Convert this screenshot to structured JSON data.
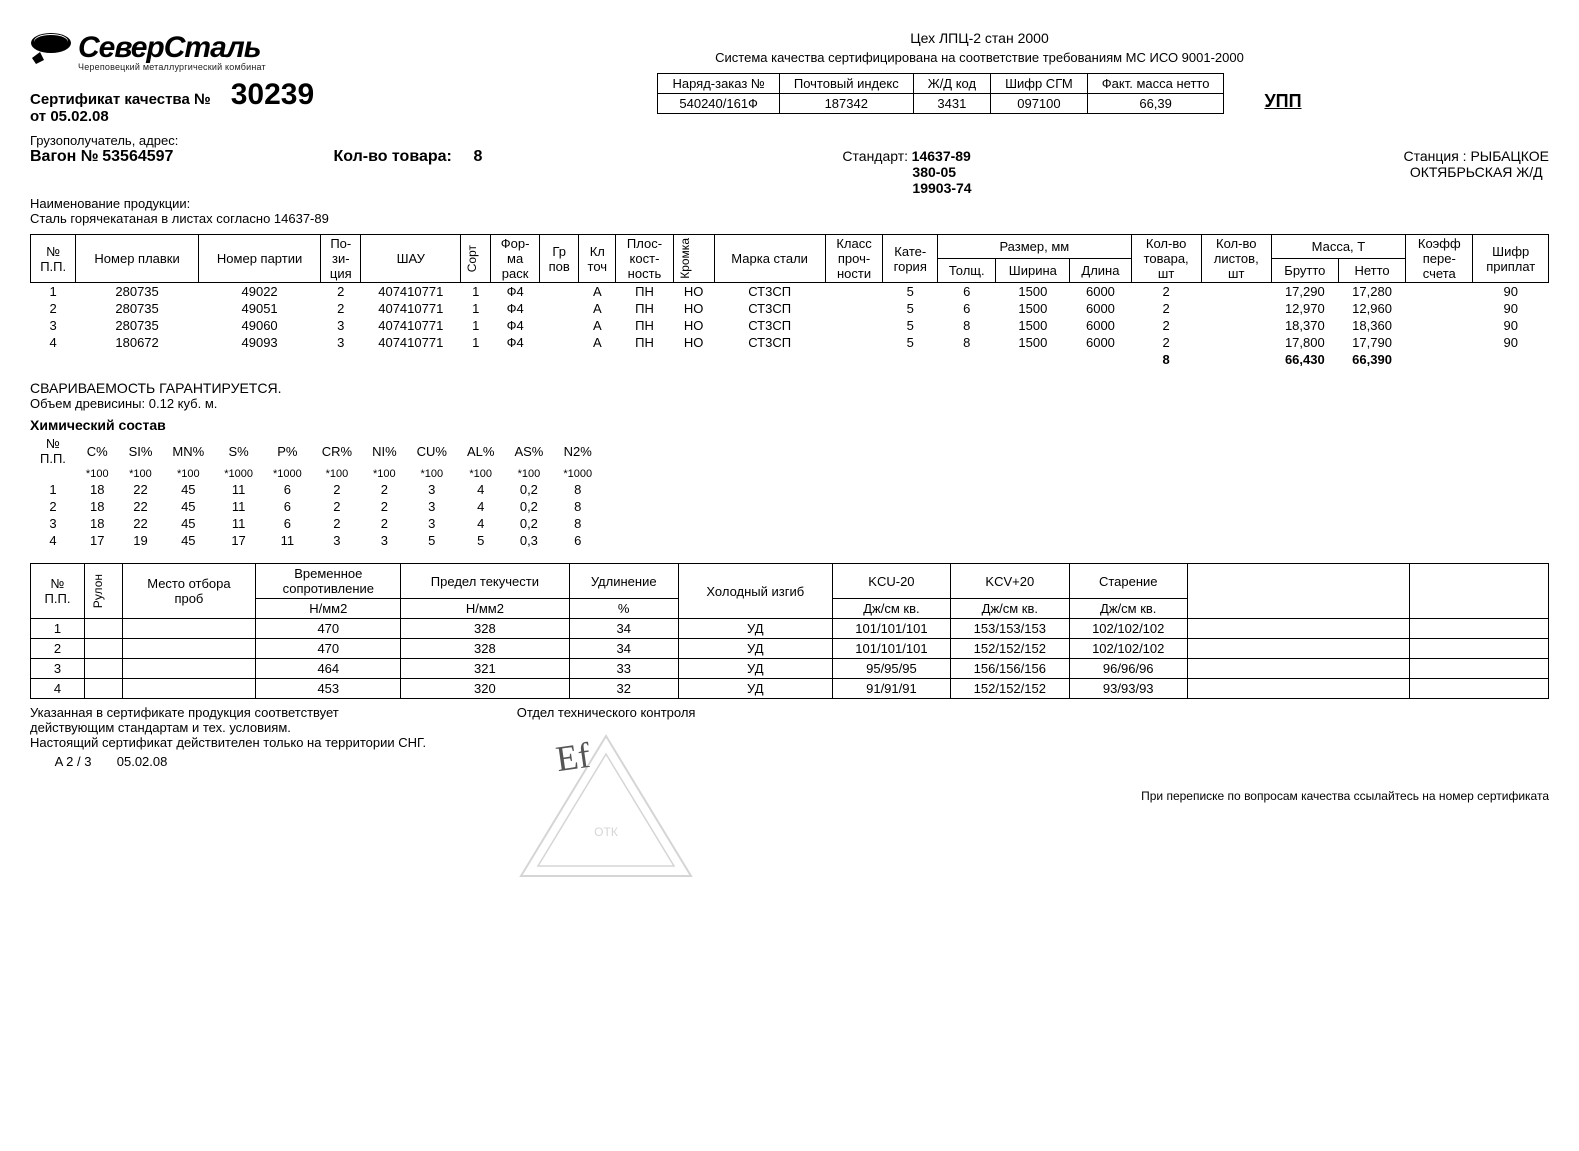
{
  "logo": {
    "company": "СеверСталь",
    "sub": "Череповецкий металлургический комбинат"
  },
  "cert": {
    "label": "Сертификат качества №",
    "number": "30239",
    "date_label": "от",
    "date": "05.02.08"
  },
  "mill": "Цех ЛПЦ-2 стан 2000",
  "iso": "Система качества сертифицирована на соответствие требованиям МС ИСО 9001-2000",
  "info_headers": [
    "Наряд-заказ №",
    "Почтовый индекс",
    "Ж/Д код",
    "Шифр СГМ",
    "Факт. масса нетто"
  ],
  "info_values": [
    "540240/161Ф",
    "187342",
    "3431",
    "097100",
    "66,39"
  ],
  "upp": "УПП",
  "consignee_label": "Грузополучатель, адрес:",
  "wagon": {
    "label": "Вагон №",
    "num": "53564597"
  },
  "qty": {
    "label": "Кол-во товара:",
    "val": "8"
  },
  "standard_label": "Стандарт:",
  "standards": [
    "14637-89",
    "380-05",
    "19903-74"
  ],
  "station_label": "Станция :",
  "station": "РЫБАЦКОЕ",
  "railway": "ОКТЯБРЬСКАЯ Ж/Д",
  "product_label": "Наименование продукции:",
  "product": "Сталь горячекатаная в листах согласно 14637-89",
  "main_headers": {
    "npp": "№\nП.П.",
    "plavka": "Номер плавки",
    "partia": "Номер партии",
    "poz": "По-\nзи-\nция",
    "shau": "ШАУ",
    "sort": "Сорт",
    "forma": "Фор-\nма\nраск",
    "grpov": "Гр\nпов",
    "kltoch": "Кл\nточ",
    "plosk": "Плос-\nкост-\nность",
    "kromka": "Кромка",
    "marka": "Марка стали",
    "klass": "Класс\nпроч-\nности",
    "kateg": "Кате-\nгория",
    "razmer": "Размер, мм",
    "tolsh": "Толщ.",
    "shir": "Ширина",
    "dlina": "Длина",
    "kolvo": "Кол-во\nтовара,\nшт",
    "listov": "Кол-во\nлистов,\nшт",
    "massa": "Масса, Т",
    "brutto": "Брутто",
    "netto": "Нетто",
    "koef": "Коэфф\nпере-\nсчета",
    "shifr": "Шифр\nприплат"
  },
  "main_rows": [
    {
      "n": "1",
      "plavka": "280735",
      "partia": "49022",
      "poz": "2",
      "shau": "407410771",
      "sort": "1",
      "forma": "Ф4",
      "grpov": "",
      "kl": "А",
      "plosk": "ПН",
      "kromka": "НО",
      "marka": "СТ3СП",
      "klass": "",
      "kateg": "5",
      "t": "6",
      "w": "1500",
      "l": "6000",
      "qty": "2",
      "list": "",
      "br": "17,290",
      "net": "17,280",
      "koef": "",
      "shifr": "90"
    },
    {
      "n": "2",
      "plavka": "280735",
      "partia": "49051",
      "poz": "2",
      "shau": "407410771",
      "sort": "1",
      "forma": "Ф4",
      "grpov": "",
      "kl": "А",
      "plosk": "ПН",
      "kromka": "НО",
      "marka": "СТ3СП",
      "klass": "",
      "kateg": "5",
      "t": "6",
      "w": "1500",
      "l": "6000",
      "qty": "2",
      "list": "",
      "br": "12,970",
      "net": "12,960",
      "koef": "",
      "shifr": "90"
    },
    {
      "n": "3",
      "plavka": "280735",
      "partia": "49060",
      "poz": "3",
      "shau": "407410771",
      "sort": "1",
      "forma": "Ф4",
      "grpov": "",
      "kl": "А",
      "plosk": "ПН",
      "kromka": "НО",
      "marka": "СТ3СП",
      "klass": "",
      "kateg": "5",
      "t": "8",
      "w": "1500",
      "l": "6000",
      "qty": "2",
      "list": "",
      "br": "18,370",
      "net": "18,360",
      "koef": "",
      "shifr": "90"
    },
    {
      "n": "4",
      "plavka": "180672",
      "partia": "49093",
      "poz": "3",
      "shau": "407410771",
      "sort": "1",
      "forma": "Ф4",
      "grpov": "",
      "kl": "А",
      "plosk": "ПН",
      "kromka": "НО",
      "marka": "СТ3СП",
      "klass": "",
      "kateg": "5",
      "t": "8",
      "w": "1500",
      "l": "6000",
      "qty": "2",
      "list": "",
      "br": "17,800",
      "net": "17,790",
      "koef": "",
      "shifr": "90"
    }
  ],
  "totals": {
    "qty": "8",
    "br": "66,430",
    "net": "66,390"
  },
  "weld_note": "СВАРИВАЕМОСТЬ ГАРАНТИРУЕТСЯ.",
  "wood_note": "Объем древисины: 0.12 куб. м.",
  "chem_title": "Химический состав",
  "chem_headers": [
    "№\nП.П.",
    "C%",
    "SI%",
    "MN%",
    "S%",
    "P%",
    "CR%",
    "NI%",
    "CU%",
    "AL%",
    "AS%",
    "N2%"
  ],
  "chem_mult": [
    "",
    "*100",
    "*100",
    "*100",
    "*1000",
    "*1000",
    "*100",
    "*100",
    "*100",
    "*100",
    "*100",
    "*1000"
  ],
  "chem_rows": [
    [
      "1",
      "18",
      "22",
      "45",
      "11",
      "6",
      "2",
      "2",
      "3",
      "4",
      "0,2",
      "8"
    ],
    [
      "2",
      "18",
      "22",
      "45",
      "11",
      "6",
      "2",
      "2",
      "3",
      "4",
      "0,2",
      "8"
    ],
    [
      "3",
      "18",
      "22",
      "45",
      "11",
      "6",
      "2",
      "2",
      "3",
      "4",
      "0,2",
      "8"
    ],
    [
      "4",
      "17",
      "19",
      "45",
      "17",
      "11",
      "3",
      "3",
      "5",
      "5",
      "0,3",
      "6"
    ]
  ],
  "mech_headers": {
    "npp": "№\nП.П.",
    "rulon": "Рулон",
    "mesto": "Место отбора\nпроб",
    "vrem": "Временное\nсопротивление",
    "vrem_u": "Н/мм2",
    "tek": "Предел текучести",
    "tek_u": "Н/мм2",
    "udl": "Удлинение",
    "udl_u": "%",
    "izgib": "Холодный изгиб",
    "kcu": "KCU-20",
    "kcu_u": "Дж/см кв.",
    "kcv": "KCV+20",
    "kcv_u": "Дж/см кв.",
    "star": "Старение",
    "star_u": "Дж/см кв."
  },
  "mech_rows": [
    {
      "n": "1",
      "r": "",
      "m": "",
      "vr": "470",
      "tek": "328",
      "ud": "34",
      "iz": "УД",
      "kcu": "101/101/101",
      "kcv": "153/153/153",
      "st": "102/102/102"
    },
    {
      "n": "2",
      "r": "",
      "m": "",
      "vr": "470",
      "tek": "328",
      "ud": "34",
      "iz": "УД",
      "kcu": "101/101/101",
      "kcv": "152/152/152",
      "st": "102/102/102"
    },
    {
      "n": "3",
      "r": "",
      "m": "",
      "vr": "464",
      "tek": "321",
      "ud": "33",
      "iz": "УД",
      "kcu": "95/95/95",
      "kcv": "156/156/156",
      "st": "96/96/96"
    },
    {
      "n": "4",
      "r": "",
      "m": "",
      "vr": "453",
      "tek": "320",
      "ud": "32",
      "iz": "УД",
      "kcu": "91/91/91",
      "kcv": "152/152/152",
      "st": "93/93/93"
    }
  ],
  "footer": {
    "line1": "Указанная в сертификате продукция соответствует",
    "line2": "действующим стандартам и тех. условиям.",
    "line3": "Настоящий сертификат действителен только на территории СНГ.",
    "code": "A 2 / 3",
    "date": "05.02.08",
    "otk": "Отдел технического контроля",
    "ref": "При переписке по вопросам качества ссылайтесь на номер сертификата"
  }
}
